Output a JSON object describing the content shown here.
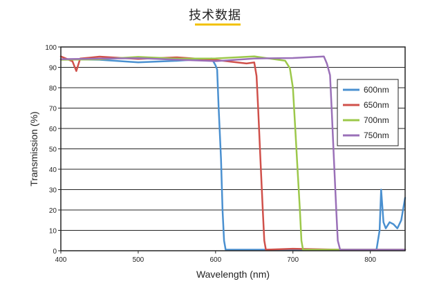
{
  "page": {
    "heading": "技术数据",
    "accent_color": "#f2c200"
  },
  "chart_data": {
    "type": "line",
    "title": "",
    "xlabel": "Wavelength (nm)",
    "ylabel": "Transmission (%)",
    "xlim": [
      400,
      845
    ],
    "ylim": [
      0,
      100
    ],
    "x_ticks": [
      400,
      500,
      600,
      700,
      800
    ],
    "y_ticks": [
      0,
      10,
      20,
      30,
      40,
      50,
      60,
      70,
      80,
      90,
      100
    ],
    "grid": "horizontal",
    "legend_position": "right",
    "series": [
      {
        "name": "600nm",
        "color": "#4a90d0",
        "points": [
          [
            400,
            94
          ],
          [
            420,
            93
          ],
          [
            450,
            94
          ],
          [
            500,
            93
          ],
          [
            550,
            94
          ],
          [
            595,
            93
          ],
          [
            600,
            92
          ],
          [
            602,
            88
          ],
          [
            604,
            70
          ],
          [
            607,
            45
          ],
          [
            609,
            20
          ],
          [
            611,
            5
          ],
          [
            613,
            0.5
          ],
          [
            630,
            0.5
          ],
          [
            700,
            0.5
          ],
          [
            780,
            0.5
          ],
          [
            808,
            0.5
          ],
          [
            812,
            10
          ],
          [
            814,
            30
          ],
          [
            817,
            14
          ],
          [
            820,
            11
          ],
          [
            825,
            14
          ],
          [
            830,
            13
          ],
          [
            835,
            11
          ],
          [
            840,
            15
          ],
          [
            845,
            26
          ]
        ]
      },
      {
        "name": "650nm",
        "color": "#d0504a",
        "points": [
          [
            400,
            94
          ],
          [
            415,
            93
          ],
          [
            420,
            89
          ],
          [
            425,
            93
          ],
          [
            450,
            94
          ],
          [
            500,
            93
          ],
          [
            550,
            94
          ],
          [
            600,
            93
          ],
          [
            640,
            93
          ],
          [
            650,
            92
          ],
          [
            653,
            85
          ],
          [
            655,
            70
          ],
          [
            658,
            45
          ],
          [
            661,
            20
          ],
          [
            663,
            5
          ],
          [
            665,
            0.5
          ],
          [
            700,
            1
          ],
          [
            760,
            0.5
          ],
          [
            845,
            0.5
          ]
        ]
      },
      {
        "name": "700nm",
        "color": "#9cc84a",
        "points": [
          [
            400,
            93
          ],
          [
            450,
            93
          ],
          [
            500,
            94
          ],
          [
            550,
            93
          ],
          [
            600,
            93
          ],
          [
            650,
            94
          ],
          [
            690,
            93
          ],
          [
            696,
            91
          ],
          [
            700,
            80
          ],
          [
            703,
            60
          ],
          [
            706,
            40
          ],
          [
            709,
            20
          ],
          [
            711,
            5
          ],
          [
            713,
            0.5
          ],
          [
            760,
            0.5
          ],
          [
            845,
            0.5
          ]
        ]
      },
      {
        "name": "750nm",
        "color": "#9a70b8",
        "points": [
          [
            400,
            95
          ],
          [
            450,
            95
          ],
          [
            500,
            95
          ],
          [
            550,
            94
          ],
          [
            600,
            93
          ],
          [
            650,
            94
          ],
          [
            700,
            94
          ],
          [
            740,
            94
          ],
          [
            744,
            93
          ],
          [
            748,
            85
          ],
          [
            750,
            70
          ],
          [
            753,
            45
          ],
          [
            756,
            20
          ],
          [
            758,
            5
          ],
          [
            761,
            0.5
          ],
          [
            845,
            0.5
          ]
        ]
      }
    ]
  }
}
